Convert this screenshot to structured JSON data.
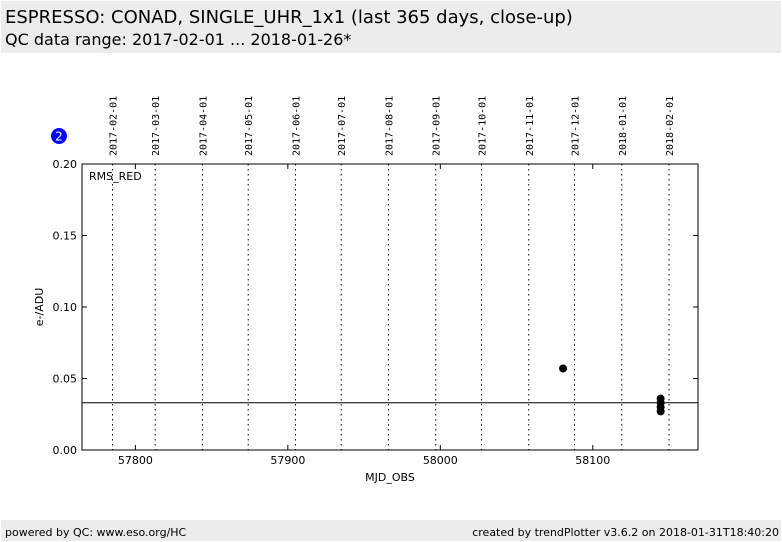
{
  "header": {
    "title": "ESPRESSO: CONAD, SINGLE_UHR_1x1 (last 365 days, close-up)",
    "subtitle": "QC data range: 2017-02-01 ... 2018-01-26*"
  },
  "footer": {
    "left": "powered by QC: www.eso.org/HC",
    "right": "created by trendPlotter v3.6.2 on 2018-01-31T18:40:20"
  },
  "badge": {
    "label": "2",
    "color": "#0000ff"
  },
  "chart_data": {
    "type": "scatter",
    "xlabel": "MJD_OBS",
    "ylabel": "e-/ADU",
    "panel_label": "RMS_RED",
    "xlim": [
      57765,
      58169
    ],
    "ylim": [
      0,
      0.2
    ],
    "xticks": [
      57800,
      57900,
      58000,
      58100
    ],
    "yticks": [
      "0.00",
      "0.05",
      "0.10",
      "0.15",
      "0.20"
    ],
    "date_lines": [
      {
        "label": "2017-02-01",
        "mjd": 57785
      },
      {
        "label": "2017-03-01",
        "mjd": 57813
      },
      {
        "label": "2017-04-01",
        "mjd": 57844
      },
      {
        "label": "2017-05-01",
        "mjd": 57874
      },
      {
        "label": "2017-06-01",
        "mjd": 57905
      },
      {
        "label": "2017-07-01",
        "mjd": 57935
      },
      {
        "label": "2017-08-01",
        "mjd": 57966
      },
      {
        "label": "2017-09-01",
        "mjd": 57997
      },
      {
        "label": "2017-10-01",
        "mjd": 58027
      },
      {
        "label": "2017-11-01",
        "mjd": 58058
      },
      {
        "label": "2017-12-01",
        "mjd": 58088
      },
      {
        "label": "2018-01-01",
        "mjd": 58119
      },
      {
        "label": "2018-02-01",
        "mjd": 58150
      }
    ],
    "reference_line": 0.033,
    "points": [
      {
        "x": 58080.5,
        "y": 0.057
      },
      {
        "x": 58144.5,
        "y": 0.027
      },
      {
        "x": 58144.5,
        "y": 0.03
      },
      {
        "x": 58144.5,
        "y": 0.033
      },
      {
        "x": 58144.5,
        "y": 0.036
      }
    ],
    "marker_color": "#000000"
  }
}
